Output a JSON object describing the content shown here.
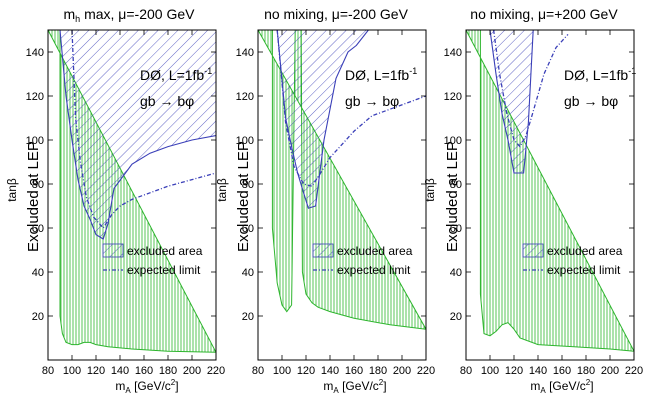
{
  "figure": {
    "ylabel": "tanβ",
    "xlabel_main": "m",
    "xlabel_sub": "A",
    "xlabel_units": " [GeV/c",
    "xlabel_sup": "2",
    "xlabel_close": "]",
    "side_label": "Excluded at LEP",
    "exp_line1_main": "DØ, L=1fb",
    "exp_line1_sup": "-1",
    "exp_line2": "gb → bφ",
    "legend_excluded": "excluded area",
    "legend_expected": "expected limit",
    "colors": {
      "exclusion": "#3a3fb8",
      "lep": "#2db52d",
      "axis": "#000000"
    }
  },
  "chart_data": [
    {
      "type": "area",
      "title_parts": [
        "m",
        "h",
        " max, μ=-200 GeV"
      ],
      "xlim": [
        80,
        220
      ],
      "ylim": [
        0,
        150
      ],
      "xticks": [
        80,
        100,
        120,
        140,
        160,
        180,
        200,
        220
      ],
      "yticks": [
        20,
        40,
        60,
        80,
        100,
        120,
        140
      ],
      "excluded_boundary": [
        [
          90,
          150
        ],
        [
          95,
          120
        ],
        [
          100,
          100
        ],
        [
          105,
          82
        ],
        [
          110,
          70
        ],
        [
          115,
          64
        ],
        [
          120,
          57
        ],
        [
          126,
          55
        ],
        [
          130,
          62
        ],
        [
          135,
          78
        ],
        [
          150,
          89
        ],
        [
          165,
          94
        ],
        [
          180,
          97
        ],
        [
          200,
          100
        ],
        [
          220,
          102
        ]
      ],
      "expected_limit": [
        [
          100,
          150
        ],
        [
          103,
          110
        ],
        [
          107,
          90
        ],
        [
          112,
          74
        ],
        [
          118,
          65
        ],
        [
          126,
          60
        ],
        [
          133,
          66
        ],
        [
          140,
          70
        ],
        [
          150,
          73
        ],
        [
          165,
          76
        ],
        [
          180,
          79
        ],
        [
          200,
          82
        ],
        [
          220,
          85
        ]
      ],
      "lep_excluded_band": [
        [
          80,
          150
        ],
        [
          90,
          150
        ],
        [
          90,
          20
        ],
        [
          92,
          12
        ],
        [
          95,
          8
        ],
        [
          100,
          7
        ],
        [
          105,
          7
        ],
        [
          110,
          8
        ],
        [
          115,
          8
        ],
        [
          120,
          7
        ],
        [
          130,
          6
        ],
        [
          150,
          5
        ],
        [
          180,
          4
        ],
        [
          220,
          3.5
        ]
      ]
    },
    {
      "type": "area",
      "title_parts": [
        "no mixing, μ=-200 GeV"
      ],
      "xlim": [
        80,
        220
      ],
      "ylim": [
        0,
        150
      ],
      "xticks": [
        80,
        100,
        120,
        140,
        160,
        180,
        200,
        220
      ],
      "yticks": [
        20,
        40,
        60,
        80,
        100,
        120,
        140
      ],
      "excluded_boundary": [
        [
          96,
          150
        ],
        [
          103,
          110
        ],
        [
          108,
          97
        ],
        [
          113,
          85
        ],
        [
          118,
          76
        ],
        [
          122,
          69
        ],
        [
          128,
          70
        ],
        [
          135,
          100
        ],
        [
          145,
          128
        ],
        [
          155,
          140
        ],
        [
          162,
          143
        ],
        [
          172,
          150
        ]
      ],
      "expected_limit": [
        [
          96,
          150
        ],
        [
          103,
          108
        ],
        [
          110,
          88
        ],
        [
          118,
          80
        ],
        [
          125,
          79
        ],
        [
          131,
          84
        ],
        [
          140,
          92
        ],
        [
          150,
          98
        ],
        [
          160,
          104
        ],
        [
          175,
          111
        ],
        [
          190,
          114
        ],
        [
          205,
          117
        ],
        [
          220,
          120
        ]
      ],
      "lep_excluded_band": [
        [
          80,
          150
        ],
        [
          92,
          150
        ],
        [
          92,
          60
        ],
        [
          96,
          35
        ],
        [
          100,
          25
        ],
        [
          104,
          22
        ],
        [
          108,
          25
        ],
        [
          111,
          150
        ],
        [
          116,
          150
        ],
        [
          117,
          40
        ],
        [
          120,
          30
        ],
        [
          125,
          26
        ],
        [
          130,
          24
        ],
        [
          140,
          22
        ],
        [
          160,
          19
        ],
        [
          190,
          16
        ],
        [
          220,
          14
        ]
      ]
    },
    {
      "type": "area",
      "title_parts": [
        "no mixing, μ=+200 GeV"
      ],
      "xlim": [
        80,
        220
      ],
      "ylim": [
        0,
        150
      ],
      "xticks": [
        80,
        100,
        120,
        140,
        160,
        180,
        200,
        220
      ],
      "yticks": [
        20,
        40,
        60,
        80,
        100,
        120,
        140
      ],
      "excluded_boundary": [
        [
          100,
          150
        ],
        [
          105,
          130
        ],
        [
          110,
          112
        ],
        [
          115,
          100
        ],
        [
          120,
          85
        ],
        [
          128,
          85
        ],
        [
          132,
          108
        ],
        [
          136,
          150
        ]
      ],
      "expected_limit": [
        [
          103,
          150
        ],
        [
          108,
          130
        ],
        [
          114,
          112
        ],
        [
          120,
          100
        ],
        [
          125,
          97
        ],
        [
          130,
          102
        ],
        [
          136,
          113
        ],
        [
          145,
          130
        ],
        [
          155,
          142
        ],
        [
          165,
          148
        ]
      ],
      "lep_excluded_band": [
        [
          80,
          150
        ],
        [
          92,
          150
        ],
        [
          92,
          30
        ],
        [
          95,
          12
        ],
        [
          100,
          11
        ],
        [
          105,
          13
        ],
        [
          110,
          16
        ],
        [
          115,
          17
        ],
        [
          120,
          14
        ],
        [
          125,
          10
        ],
        [
          140,
          7
        ],
        [
          170,
          6
        ],
        [
          200,
          5
        ],
        [
          220,
          4
        ]
      ]
    }
  ]
}
